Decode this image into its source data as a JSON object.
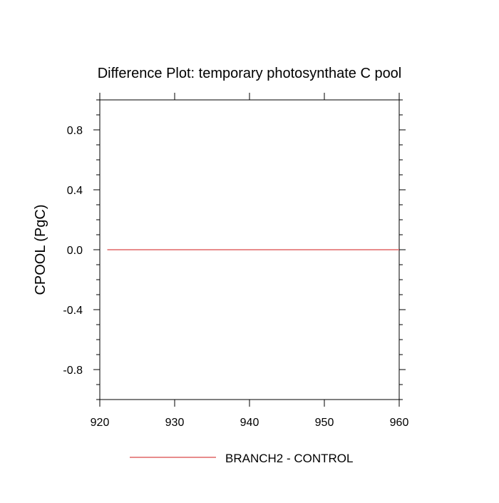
{
  "chart_data": {
    "type": "line",
    "title": "Difference Plot: temporary photosynthate C pool",
    "xlabel": "",
    "ylabel": "CPOOL  (PgC)",
    "xlim": [
      920,
      960
    ],
    "ylim": [
      -1.0,
      1.0
    ],
    "x_ticks": [
      920,
      930,
      940,
      950,
      960
    ],
    "x_tick_labels": [
      "920",
      "930",
      "940",
      "950",
      "960"
    ],
    "y_ticks": [
      -0.8,
      -0.4,
      0.0,
      0.4,
      0.8
    ],
    "y_tick_labels": [
      "-0.8",
      "-0.4",
      "0.0",
      "0.4",
      "0.8"
    ],
    "grid": false,
    "legend_position": "bottom",
    "series": [
      {
        "name": "BRANCH2 - CONTROL",
        "color": "#e06666",
        "x": [
          921,
          960
        ],
        "y": [
          0.0,
          0.0
        ]
      }
    ]
  }
}
